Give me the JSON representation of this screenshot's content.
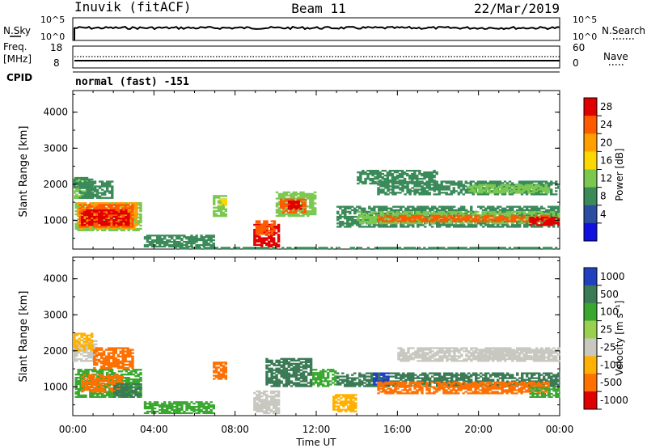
{
  "header": {
    "station": "Inuvik (fitACF)",
    "beam": "Beam 11",
    "date": "22/Mar/2019",
    "cpid_label": "CPID",
    "cpid_value": "normal (fast) -151"
  },
  "strip_panels": {
    "nsky": {
      "left_label": "N.Sky",
      "left_ticks": [
        "10^5",
        "10^0"
      ],
      "right_ticks": [
        "10^5",
        "10^0"
      ],
      "right_label": "N.Search"
    },
    "freq": {
      "left_label_1": "Freq.",
      "left_label_2": "[MHz]",
      "left_ticks": [
        "18",
        "8"
      ],
      "right_ticks": [
        "60",
        "0"
      ],
      "right_label": "Nave"
    }
  },
  "chart_data": [
    {
      "type": "heatmap",
      "name": "power",
      "ylabel": "Slant Range [km]",
      "yticks": [
        "1000",
        "2000",
        "3000",
        "4000"
      ],
      "ylim": [
        200,
        4600
      ],
      "colorbar_label": "Power [dB]",
      "colorbar_ticks": [
        "28",
        "24",
        "20",
        "16",
        "12",
        "8",
        "4"
      ],
      "colorbar_colors": [
        "#e00000",
        "#ff5a00",
        "#ffa000",
        "#ffd700",
        "#7bc850",
        "#3a8a5a",
        "#2a4fa0",
        "#1010e0"
      ],
      "colorbar_range": [
        0,
        30
      ]
    },
    {
      "type": "heatmap",
      "name": "velocity",
      "ylabel": "Slant Range [km]",
      "yticks": [
        "1000",
        "2000",
        "3000",
        "4000"
      ],
      "ylim": [
        200,
        4600
      ],
      "colorbar_label": "Velocity [m s⁻¹]",
      "colorbar_ticks": [
        "1000",
        "500",
        "100",
        "25",
        "-25",
        "-100",
        "-500",
        "-1000"
      ],
      "colorbar_colors": [
        "#2040c0",
        "#3a7a55",
        "#3aa830",
        "#9ad050",
        "#c8c8c0",
        "#ffb000",
        "#ff7000",
        "#e00000"
      ],
      "colorbar_range": [
        -1000,
        1000
      ]
    }
  ],
  "x_axis": {
    "ticks": [
      "00:00",
      "04:00",
      "08:00",
      "12:00",
      "16:00",
      "20:00",
      "00:00"
    ],
    "label": "Time UT"
  },
  "power_patches": [
    {
      "t0": 0.0,
      "t1": 1.0,
      "r0": 1600,
      "r1": 2200,
      "c": "#7bc850"
    },
    {
      "t0": 0.0,
      "t1": 1.0,
      "r0": 1900,
      "r1": 2200,
      "c": "#3a8a5a"
    },
    {
      "t0": 0.1,
      "t1": 3.4,
      "r0": 700,
      "r1": 1500,
      "c": "#7bc850"
    },
    {
      "t0": 0.2,
      "t1": 3.2,
      "r0": 750,
      "r1": 1500,
      "c": "#ffa000"
    },
    {
      "t0": 0.3,
      "t1": 3.0,
      "r0": 800,
      "r1": 1450,
      "c": "#ff5a00"
    },
    {
      "t0": 0.4,
      "t1": 2.8,
      "r0": 850,
      "r1": 1300,
      "c": "#e00000"
    },
    {
      "t0": 0.3,
      "t1": 2.0,
      "r0": 1600,
      "r1": 2100,
      "c": "#3a8a5a"
    },
    {
      "t0": 3.5,
      "t1": 7.0,
      "r0": 250,
      "r1": 600,
      "c": "#3a8a5a"
    },
    {
      "t0": 6.9,
      "t1": 7.6,
      "r0": 1100,
      "r1": 1700,
      "c": "#7bc850"
    },
    {
      "t0": 7.2,
      "t1": 7.6,
      "r0": 1400,
      "r1": 1600,
      "c": "#ffd700"
    },
    {
      "t0": 8.9,
      "t1": 10.2,
      "r0": 250,
      "r1": 900,
      "c": "#e00000"
    },
    {
      "t0": 9.0,
      "t1": 10.0,
      "r0": 600,
      "r1": 1000,
      "c": "#ff5a00"
    },
    {
      "t0": 10.0,
      "t1": 12.0,
      "r0": 1100,
      "r1": 1800,
      "c": "#7bc850"
    },
    {
      "t0": 10.2,
      "t1": 11.5,
      "r0": 1200,
      "r1": 1600,
      "c": "#ff5a00"
    },
    {
      "t0": 10.6,
      "t1": 11.3,
      "r0": 1300,
      "r1": 1550,
      "c": "#e00000"
    },
    {
      "t0": 13.0,
      "t1": 24.0,
      "r0": 800,
      "r1": 1400,
      "c": "#3a8a5a"
    },
    {
      "t0": 14.0,
      "t1": 24.0,
      "r0": 900,
      "r1": 1250,
      "c": "#7bc850"
    },
    {
      "t0": 15.0,
      "t1": 23.5,
      "r0": 950,
      "r1": 1150,
      "c": "#ff5a00"
    },
    {
      "t0": 22.5,
      "t1": 24.0,
      "r0": 850,
      "r1": 1100,
      "c": "#e00000"
    },
    {
      "t0": 15.0,
      "t1": 24.0,
      "r0": 1700,
      "r1": 2100,
      "c": "#3a8a5a"
    },
    {
      "t0": 19.5,
      "t1": 23.5,
      "r0": 1750,
      "r1": 2000,
      "c": "#7bc850"
    },
    {
      "t0": 14.0,
      "t1": 18.0,
      "r0": 2000,
      "r1": 2400,
      "c": "#3a8a5a"
    },
    {
      "t0": 5.0,
      "t1": 24.0,
      "r0": 200,
      "r1": 260,
      "c": "#3a8a5a"
    }
  ],
  "velocity_patches": [
    {
      "t0": 0.0,
      "t1": 1.2,
      "r0": 1700,
      "r1": 2300,
      "c": "#c8c8c0"
    },
    {
      "t0": 0.1,
      "t1": 3.4,
      "r0": 700,
      "r1": 1500,
      "c": "#3aa830"
    },
    {
      "t0": 0.4,
      "t1": 2.5,
      "r0": 850,
      "r1": 1350,
      "c": "#ff7000"
    },
    {
      "t0": 1.0,
      "t1": 3.0,
      "r0": 1500,
      "r1": 2100,
      "c": "#ff7000"
    },
    {
      "t0": 0.0,
      "t1": 1.0,
      "r0": 2000,
      "r1": 2500,
      "c": "#ffb000"
    },
    {
      "t0": 2.0,
      "t1": 3.4,
      "r0": 700,
      "r1": 1100,
      "c": "#3a7a55"
    },
    {
      "t0": 3.5,
      "t1": 7.0,
      "r0": 250,
      "r1": 600,
      "c": "#3aa830"
    },
    {
      "t0": 6.9,
      "t1": 7.6,
      "r0": 1200,
      "r1": 1700,
      "c": "#ff7000"
    },
    {
      "t0": 8.9,
      "t1": 10.2,
      "r0": 250,
      "r1": 900,
      "c": "#c8c8c0"
    },
    {
      "t0": 9.5,
      "t1": 11.8,
      "r0": 1000,
      "r1": 1800,
      "c": "#3a7a55"
    },
    {
      "t0": 11.8,
      "t1": 13.0,
      "r0": 1000,
      "r1": 1500,
      "c": "#3aa830"
    },
    {
      "t0": 13.0,
      "t1": 24.0,
      "r0": 1000,
      "r1": 1400,
      "c": "#3a7a55"
    },
    {
      "t0": 14.8,
      "t1": 15.6,
      "r0": 1050,
      "r1": 1400,
      "c": "#2040c0"
    },
    {
      "t0": 15.0,
      "t1": 23.5,
      "r0": 800,
      "r1": 1150,
      "c": "#ff7000"
    },
    {
      "t0": 22.5,
      "t1": 24.0,
      "r0": 700,
      "r1": 1000,
      "c": "#3aa830"
    },
    {
      "t0": 16.0,
      "t1": 24.0,
      "r0": 1700,
      "r1": 2100,
      "c": "#c8c8c0"
    },
    {
      "t0": 20.0,
      "t1": 23.5,
      "r0": 1750,
      "r1": 2050,
      "c": "#c8c8c0"
    },
    {
      "t0": 12.8,
      "t1": 14.0,
      "r0": 300,
      "r1": 800,
      "c": "#ffb000"
    }
  ]
}
